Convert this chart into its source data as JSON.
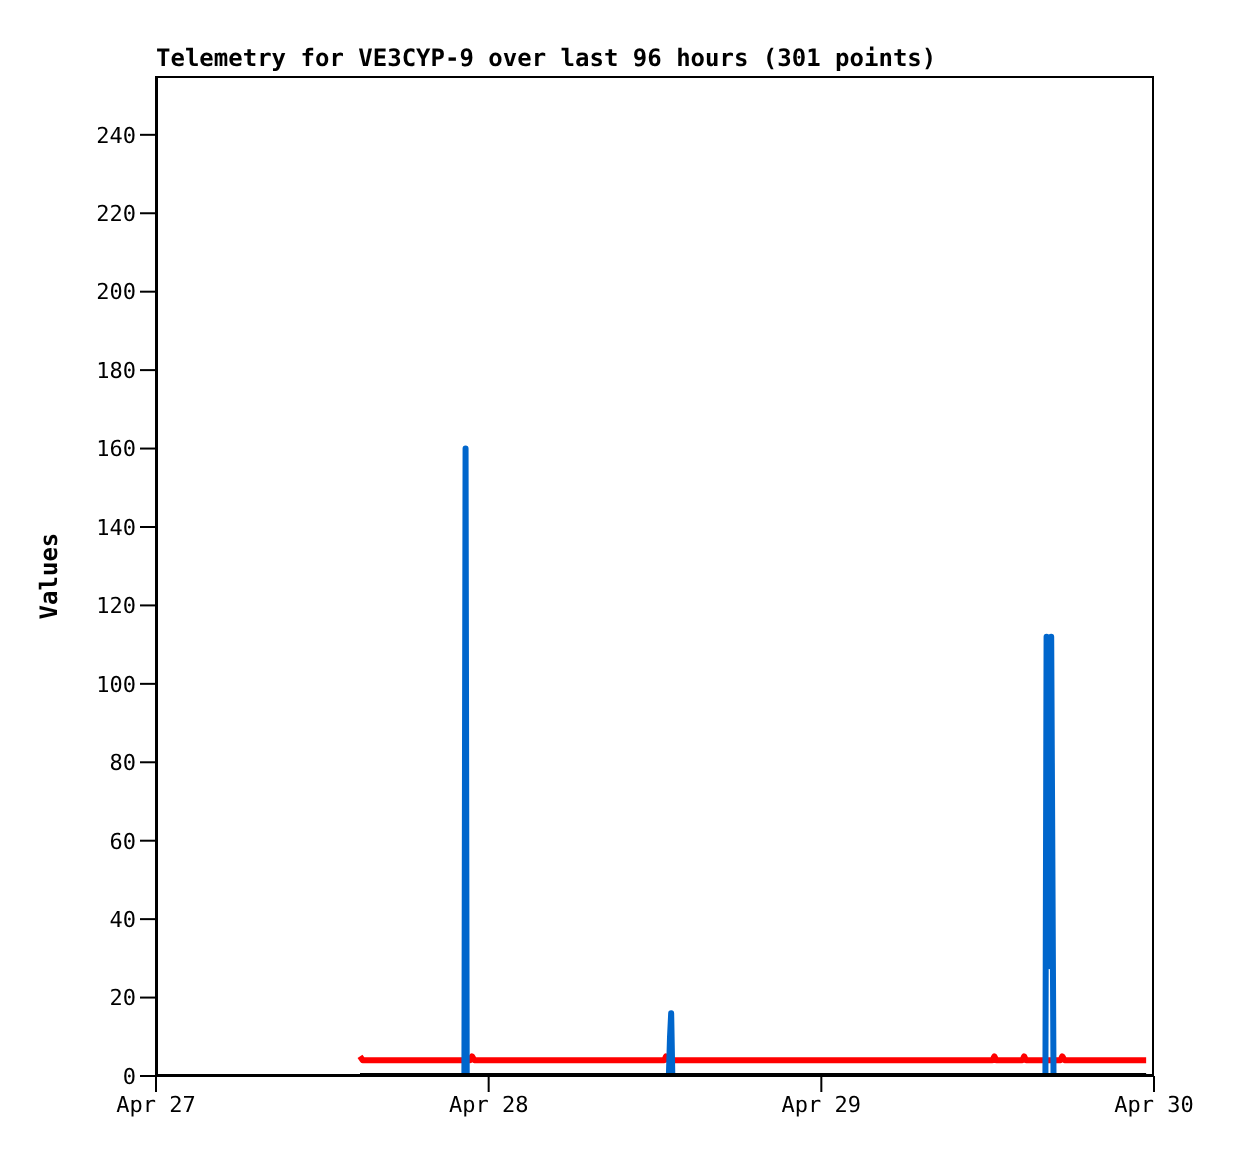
{
  "chart_data": {
    "type": "line",
    "title": "Telemetry for VE3CYP-9 over last 96 hours (301 points)",
    "ylabel": "Values",
    "xlim": [
      "--04-27",
      "--04-30"
    ],
    "xticks": [
      {
        "value": "--04-27",
        "label": "Apr 27"
      },
      {
        "value": "--04-28",
        "label": "Apr 28"
      },
      {
        "value": "--04-29",
        "label": "Apr 29"
      },
      {
        "value": "--04-30",
        "label": "Apr 30"
      }
    ],
    "ylim": [
      0,
      255
    ],
    "yticks": [
      0,
      20,
      40,
      60,
      80,
      100,
      120,
      140,
      160,
      180,
      200,
      220,
      240
    ],
    "marker": "none",
    "line_style": "solid",
    "series": [
      {
        "color": "#ff0000",
        "x": [
          "--04-27T14:43",
          "--04-27T14:55",
          "--04-27T22:40",
          "--04-27T22:48",
          "--04-27T22:58",
          "--04-28T12:40",
          "--04-28T12:48",
          "--04-28T12:58",
          "--04-29T12:20",
          "--04-29T12:29",
          "--04-29T12:38",
          "--04-29T14:30",
          "--04-29T14:38",
          "--04-29T14:46",
          "--04-29T17:15",
          "--04-29T17:23",
          "--04-29T17:33",
          "--04-29T23:26"
        ],
        "values": [
          5,
          4,
          4,
          5,
          4,
          4,
          5,
          4,
          4,
          5,
          4,
          4,
          5,
          4,
          4,
          5,
          4,
          4
        ]
      },
      {
        "color": "#0066cc",
        "x": [
          "--04-27T22:15",
          "--04-27T22:20",
          "--04-27T22:25",
          "--04-28T13:00",
          "--04-28T13:05",
          "--04-28T13:10",
          "--04-28T13:15",
          "--04-29T16:10",
          "--04-29T16:15",
          "--04-29T16:20",
          "--04-29T16:25",
          "--04-29T16:30",
          "--04-29T16:35",
          "--04-29T16:40",
          "--04-29T16:45"
        ],
        "values": [
          0,
          160,
          0,
          0,
          10,
          16,
          0,
          0,
          112,
          56,
          84,
          28,
          112,
          56,
          0
        ]
      },
      {
        "color": "#000000",
        "x": [
          "--04-27T14:43",
          "--04-29T23:26"
        ],
        "values": [
          0,
          0
        ]
      }
    ]
  }
}
